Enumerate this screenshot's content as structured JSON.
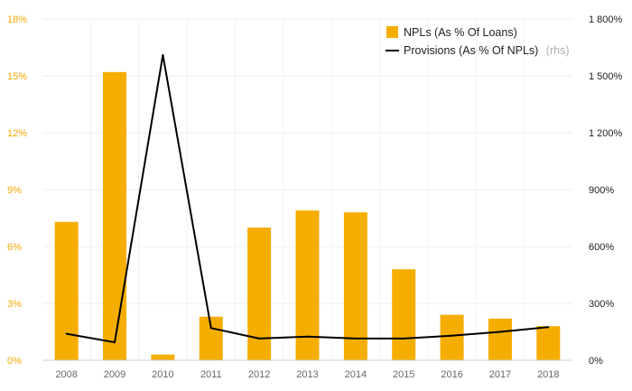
{
  "chart_data": {
    "type": "bar",
    "categories": [
      "2008",
      "2009",
      "2010",
      "2011",
      "2012",
      "2013",
      "2014",
      "2015",
      "2016",
      "2017",
      "2018"
    ],
    "series": [
      {
        "name": "NPLs (As % Of Loans)",
        "type": "bar",
        "axis": "left",
        "color": "#f5ae00",
        "values": [
          7.3,
          15.2,
          0.3,
          2.3,
          7.0,
          7.9,
          7.8,
          4.8,
          2.4,
          2.2,
          1.8
        ]
      },
      {
        "name": "Provisions (As % Of NPLs)",
        "type": "line",
        "axis": "right",
        "color": "#000000",
        "values": [
          140,
          95,
          1610,
          170,
          115,
          125,
          115,
          115,
          130,
          150,
          175
        ]
      }
    ],
    "ylim": [
      0,
      18
    ],
    "yticks": [
      0,
      3,
      6,
      9,
      12,
      15,
      18
    ],
    "ytick_labels": [
      "0%",
      "3%",
      "6%",
      "9%",
      "12%",
      "15%",
      "18%"
    ],
    "y2lim": [
      0,
      1800
    ],
    "y2ticks": [
      0,
      300,
      600,
      900,
      1200,
      1500,
      1800
    ],
    "y2tick_labels": [
      "0%",
      "300%",
      "600%",
      "900%",
      "1 200%",
      "1 500%",
      "1 800%"
    ],
    "legend_suffix": "(rhs)",
    "legend_position": "top-right",
    "grid": true
  }
}
